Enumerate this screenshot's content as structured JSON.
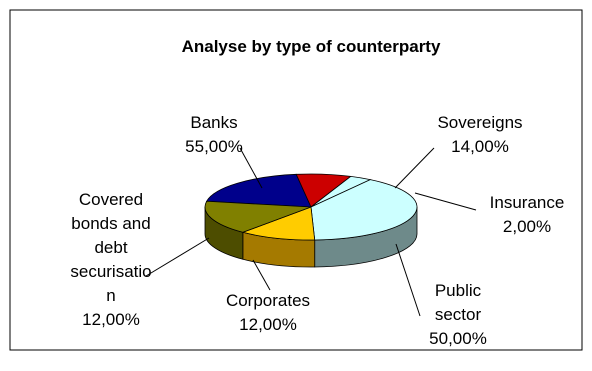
{
  "chart_data": {
    "type": "pie",
    "title": "Analyse by type of counterparty",
    "slices": [
      {
        "name": "Banks",
        "value_label": "55,00%",
        "value": 55.0,
        "color": "#00008B",
        "side_color": "#00005A",
        "label_lines": [
          "Banks",
          "55,00%"
        ]
      },
      {
        "name": "Sovereigns",
        "value_label": "14,00%",
        "value": 14.0,
        "color": "#CC0000",
        "side_color": "#8B0000",
        "label_lines": [
          "Sovereigns",
          "14,00%"
        ]
      },
      {
        "name": "Insurance",
        "value_label": "2,00%",
        "value": 2.0,
        "color": "#CCFFFF",
        "side_color": "#99BBBB",
        "label_lines": [
          "Insurance",
          "2,00%"
        ]
      },
      {
        "name": "Public sector",
        "value_label": "50,00%",
        "value": 50.0,
        "color": "#CCFFFF",
        "side_color": "#6E8A8A",
        "label_lines": [
          "Public",
          "sector",
          "50,00%"
        ]
      },
      {
        "name": "Corporates",
        "value_label": "12,00%",
        "value": 12.0,
        "color": "#FFCC00",
        "side_color": "#A57A00",
        "label_lines": [
          "Corporates",
          "12,00%"
        ]
      },
      {
        "name": "Covered bonds and debt securisation",
        "value_label": "12,00%",
        "value": 12.0,
        "color": "#808000",
        "side_color": "#4D4D00",
        "label_lines": [
          "Covered",
          "bonds and",
          "debt",
          "securisatio",
          "n",
          "12,00%"
        ]
      }
    ],
    "border_color": "#000000",
    "background": "#FFFFFF"
  }
}
